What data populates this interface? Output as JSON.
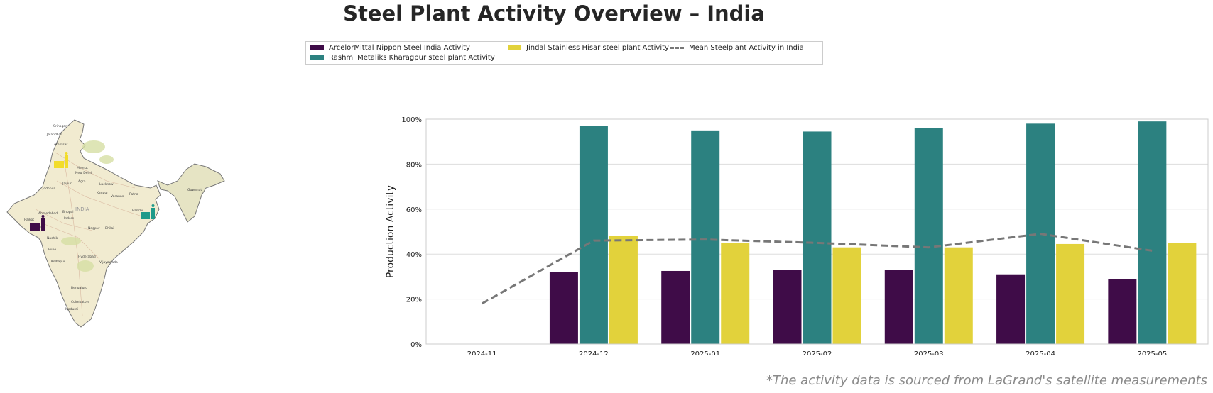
{
  "title": "Steel Plant Activity Overview – India",
  "footnote": "*The activity data is sourced from LaGrand's satellite measurements",
  "map": {
    "country_label": "INDIA",
    "cities": [
      "Srinagar",
      "Jalandhar",
      "Amritsar",
      "Meerut",
      "New Delhi",
      "Jaipur",
      "Agra",
      "Lucknow",
      "Jodhpur",
      "Kanpur",
      "Varanasi",
      "Patna",
      "Guwahati",
      "Ahmedabad",
      "Bhopal",
      "Indore",
      "Rajkot",
      "Ranchi",
      "Surat",
      "Nagpur",
      "Bhilai",
      "Nashik",
      "Pune",
      "Hyderabad",
      "Vijayawada",
      "Kolhapur",
      "Bengaluru",
      "Coimbatore",
      "Madurai"
    ]
  },
  "chart_data": {
    "type": "bar",
    "categories": [
      "2024-11",
      "2024-12",
      "2025-01",
      "2025-02",
      "2025-03",
      "2025-04",
      "2025-05"
    ],
    "series": [
      {
        "name": "ArcelorMittal Nippon Steel India Activity",
        "values": [
          null,
          32,
          32.5,
          33,
          33,
          31,
          29
        ],
        "color": "#3f0c48"
      },
      {
        "name": "Rashmi Metaliks Kharagpur steel plant Activity",
        "values": [
          null,
          97,
          95,
          94.5,
          96,
          98,
          99
        ],
        "color": "#2c8180"
      },
      {
        "name": "Jindal Stainless Hisar steel plant Activity",
        "values": [
          null,
          48,
          45,
          43,
          43,
          44.5,
          45
        ],
        "color": "#e2d23b"
      }
    ],
    "mean_line": {
      "name": "Mean Steelplant Activity in India",
      "values": [
        18,
        46,
        46.5,
        45,
        43,
        49,
        41.5
      ],
      "color": "#777777"
    },
    "ylabel": "Production Activity",
    "ylim": [
      0,
      100
    ],
    "yticks": [
      "0%",
      "20%",
      "40%",
      "60%",
      "80%",
      "100%"
    ],
    "grid": true,
    "legend_position": "top-center"
  },
  "icon_colors": {
    "arcelor": "#3f0c48",
    "rashmi": "#1e9a8a",
    "jindal": "#f2dc2a"
  }
}
